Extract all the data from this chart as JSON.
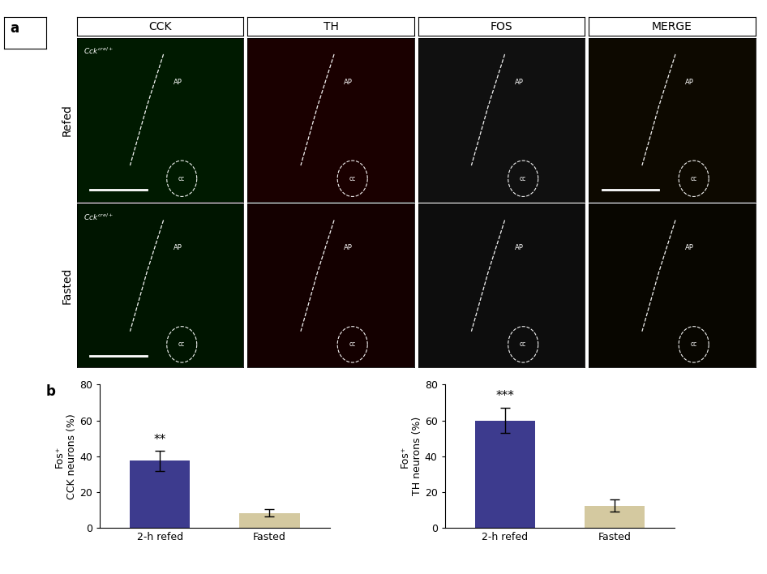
{
  "panel_a_label": "a",
  "panel_b_label": "b",
  "col_headers": [
    "CCK",
    "TH",
    "FOS",
    "MERGE"
  ],
  "row_labels": [
    "Refed",
    "Fasted"
  ],
  "ap_label": "AP",
  "cc_label": "cc",
  "chart1": {
    "ylabel": "Fos⁺\nCCK neurons (%)",
    "xlabel_ticks": [
      "2-h refed",
      "Fasted"
    ],
    "values": [
      37.5,
      8.5
    ],
    "errors": [
      5.5,
      2.0
    ],
    "colors": [
      "#3d3b8e",
      "#d4c9a0"
    ],
    "significance": "**",
    "ylim": [
      0,
      80
    ],
    "yticks": [
      0,
      20,
      40,
      60,
      80
    ]
  },
  "chart2": {
    "ylabel": "Fos⁺\nTH neurons (%)",
    "xlabel_ticks": [
      "2-h refed",
      "Fasted"
    ],
    "values": [
      60.0,
      12.5
    ],
    "errors": [
      7.0,
      3.5
    ],
    "colors": [
      "#3d3b8e",
      "#d4c9a0"
    ],
    "significance": "***",
    "ylim": [
      0,
      80
    ],
    "yticks": [
      0,
      20,
      40,
      60,
      80
    ]
  },
  "panel_bg_colors": [
    [
      "#001a00",
      "#1a0000",
      "#101010",
      "#0d0900"
    ],
    [
      "#001500",
      "#140000",
      "#0d0d0d",
      "#080600"
    ]
  ],
  "figure_width": 9.46,
  "figure_height": 7.08,
  "col_header_fontsize": 10,
  "row_label_fontsize": 10,
  "axis_label_fontsize": 9,
  "tick_fontsize": 9,
  "significance_fontsize": 11,
  "panel_label_fontsize": 12
}
